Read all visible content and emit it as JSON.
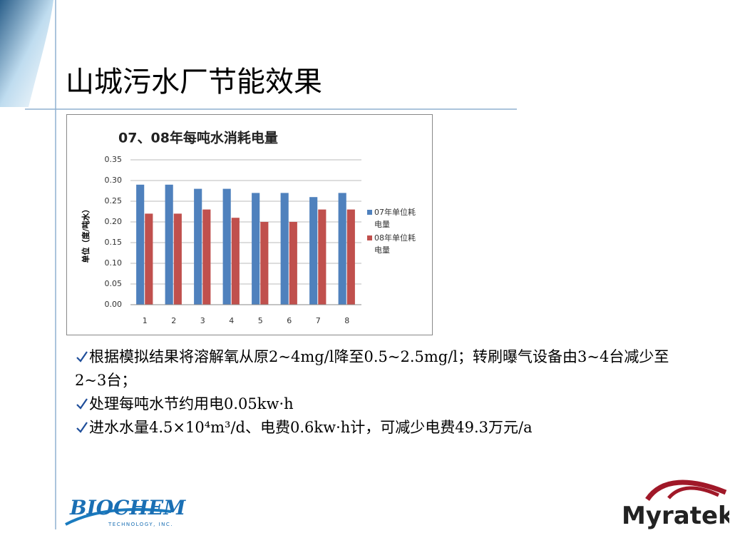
{
  "title": "山城污水厂节能效果",
  "chart_data": {
    "type": "bar",
    "title": "07、08年每吨水消耗电量",
    "y_label": "单位（度/吨水）",
    "categories": [
      "1",
      "2",
      "3",
      "4",
      "5",
      "6",
      "7",
      "8"
    ],
    "series": [
      {
        "name": "07年单位耗电量",
        "color": "#4f81bd",
        "values": [
          0.29,
          0.29,
          0.28,
          0.28,
          0.27,
          0.27,
          0.26,
          0.27
        ]
      },
      {
        "name": "08年单位耗电量",
        "color": "#c0504d",
        "values": [
          0.22,
          0.22,
          0.23,
          0.21,
          0.2,
          0.2,
          0.23,
          0.23
        ]
      }
    ],
    "ylim": [
      0,
      0.35
    ],
    "yticks": [
      {
        "value": 0,
        "label": "0.00"
      },
      0.05,
      {
        "value": 0.1,
        "label": "0.10"
      },
      0.15,
      {
        "value": 0.2,
        "label": "0.20"
      },
      0.25,
      {
        "value": 0.3,
        "label": "0.30"
      },
      0.35
    ],
    "grid": true,
    "legend": "right"
  },
  "bullets": [
    "根据模拟结果将溶解氧从原2~4mg/l降至0.5~2.5mg/l；转刷曝气设备由3~4台减少至2~3台；",
    "处理每吨水节约用电0.05kw·h",
    "进水水量4.5×10⁴m³/d、电费0.6kw·h计，可减少电费49.3万元/a"
  ],
  "logos": {
    "biochem": "BIOCHEM",
    "biochem_sub": "TECHNOLOGY, INC.",
    "myratek": "Myratek"
  }
}
